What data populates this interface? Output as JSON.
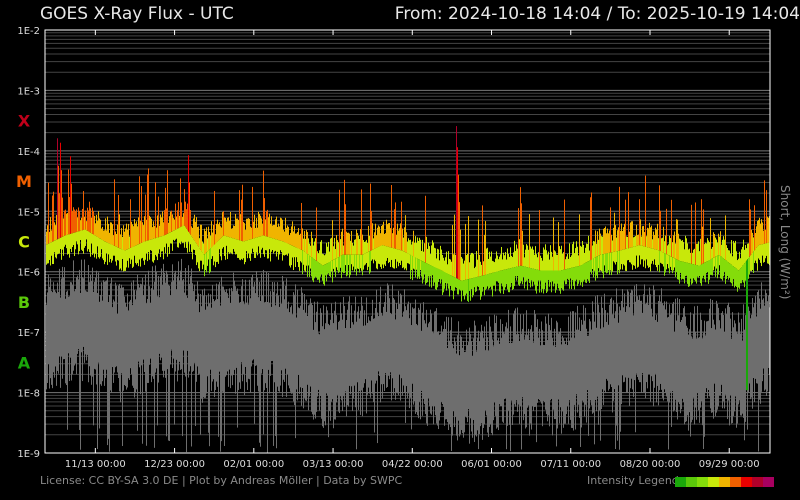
{
  "header": {
    "title": "GOES X-Ray Flux - UTC",
    "range": "From: 2024-10-18 14:04  /  To: 2025-10-19 14:04"
  },
  "footer": {
    "credits": "License: CC BY-SA 3.0 DE | Plot by Andreas Möller | Data by SWPC",
    "legend_label": "Intensity Legend",
    "legend_colors": [
      "#1aa80a",
      "#5ac80a",
      "#84dc0a",
      "#c8e80a",
      "#f0b400",
      "#f06000",
      "#e80000",
      "#b0002a",
      "#a80060"
    ]
  },
  "chart_data": {
    "type": "line",
    "title": "GOES X-Ray Flux - UTC",
    "ylabel": "Short, Long (W/m²)",
    "yscale": "log",
    "ylim": [
      1e-09,
      0.01
    ],
    "xlim": [
      "2024-10-18 14:04",
      "2025-10-19 14:04"
    ],
    "grid": true,
    "yticks": [
      "1E-2",
      "1E-3",
      "1E-4",
      "1E-5",
      "1E-6",
      "1E-7",
      "1E-8",
      "1E-9"
    ],
    "xticks": [
      "11/13 00:00",
      "12/23 00:00",
      "02/01 00:00",
      "03/13 00:00",
      "04/22 00:00",
      "06/01 00:00",
      "07/11 00:00",
      "08/20 00:00",
      "09/29 00:00"
    ],
    "xtick_dates": [
      "2024-11-13",
      "2024-12-23",
      "2025-02-01",
      "2025-03-13",
      "2025-04-22",
      "2025-06-01",
      "2025-07-11",
      "2025-08-20",
      "2025-09-29"
    ],
    "classes": [
      {
        "label": "X",
        "color": "#c0001a",
        "log_center": -3.5
      },
      {
        "label": "M",
        "color": "#f06000",
        "log_center": -4.5
      },
      {
        "label": "C",
        "color": "#c8e80a",
        "log_center": -5.5
      },
      {
        "label": "B",
        "color": "#5ac80a",
        "log_center": -6.5
      },
      {
        "label": "A",
        "color": "#1aa80a",
        "log_center": -7.5
      }
    ],
    "sample_interval_days": 10,
    "series": [
      {
        "name": "Long",
        "log10_flux_baseline": [
          -5.56,
          -5.4,
          -5.3,
          -5.5,
          -5.65,
          -5.5,
          -5.4,
          -5.23,
          -5.72,
          -5.4,
          -5.5,
          -5.4,
          -5.5,
          -5.65,
          -5.9,
          -5.72,
          -5.72,
          -5.56,
          -5.65,
          -5.82,
          -5.98,
          -6.15,
          -6.07,
          -5.98,
          -5.9,
          -5.98,
          -5.98,
          -5.9,
          -5.72,
          -5.65,
          -5.56,
          -5.65,
          -5.82,
          -5.9,
          -5.72,
          -5.98,
          -5.56,
          -5.48
        ]
      },
      {
        "name": "Short",
        "log10_flux_baseline": [
          -6.9,
          -6.8,
          -6.7,
          -7.0,
          -7.1,
          -6.9,
          -6.8,
          -6.7,
          -7.2,
          -6.9,
          -7.0,
          -6.9,
          -7.0,
          -7.2,
          -7.5,
          -7.3,
          -7.3,
          -7.1,
          -7.2,
          -7.4,
          -7.6,
          -7.8,
          -7.7,
          -7.6,
          -7.5,
          -7.6,
          -7.6,
          -7.5,
          -7.3,
          -7.2,
          -7.1,
          -7.2,
          -7.4,
          -7.5,
          -7.3,
          -7.6,
          -7.1,
          -7.0
        ]
      }
    ],
    "flares": [
      {
        "day": 6,
        "log10_peak": -3.74
      },
      {
        "day": 7.5,
        "log10_peak": -3.8
      },
      {
        "day": 11.6,
        "log10_peak": -4.3
      },
      {
        "day": 12.6,
        "log10_peak": -4.07
      },
      {
        "day": 19,
        "log10_peak": -4.5
      },
      {
        "day": 22,
        "log10_peak": -4.65
      },
      {
        "day": 37,
        "log10_peak": -4.73
      },
      {
        "day": 43,
        "log10_peak": -4.8
      },
      {
        "day": 70,
        "log10_peak": -4.48
      },
      {
        "day": 72,
        "log10_peak": -3.9
      },
      {
        "day": 98,
        "log10_peak": -4.65
      },
      {
        "day": 110,
        "log10_peak": -4.28
      },
      {
        "day": 129,
        "log10_peak": -4.65
      },
      {
        "day": 151,
        "log10_peak": -4.48
      },
      {
        "day": 164,
        "log10_peak": -4.48
      },
      {
        "day": 176,
        "log10_peak": -4.8
      },
      {
        "day": 207.6,
        "log10_peak": -3.59
      },
      {
        "day": 222,
        "log10_peak": -5.05
      },
      {
        "day": 240,
        "log10_peak": -4.6
      },
      {
        "day": 275,
        "log10_peak": -4.65
      },
      {
        "day": 285,
        "log10_peak": -4.73
      },
      {
        "day": 300,
        "log10_peak": -4.8
      },
      {
        "day": 310,
        "log10_peak": -4.57
      },
      {
        "day": 331,
        "log10_peak": -4.65
      },
      {
        "day": 356,
        "log10_peak": -4.97
      },
      {
        "day": 364,
        "log10_peak": -4.65
      }
    ],
    "dips": [
      {
        "day": 354,
        "log10_min": -7.96
      }
    ]
  }
}
